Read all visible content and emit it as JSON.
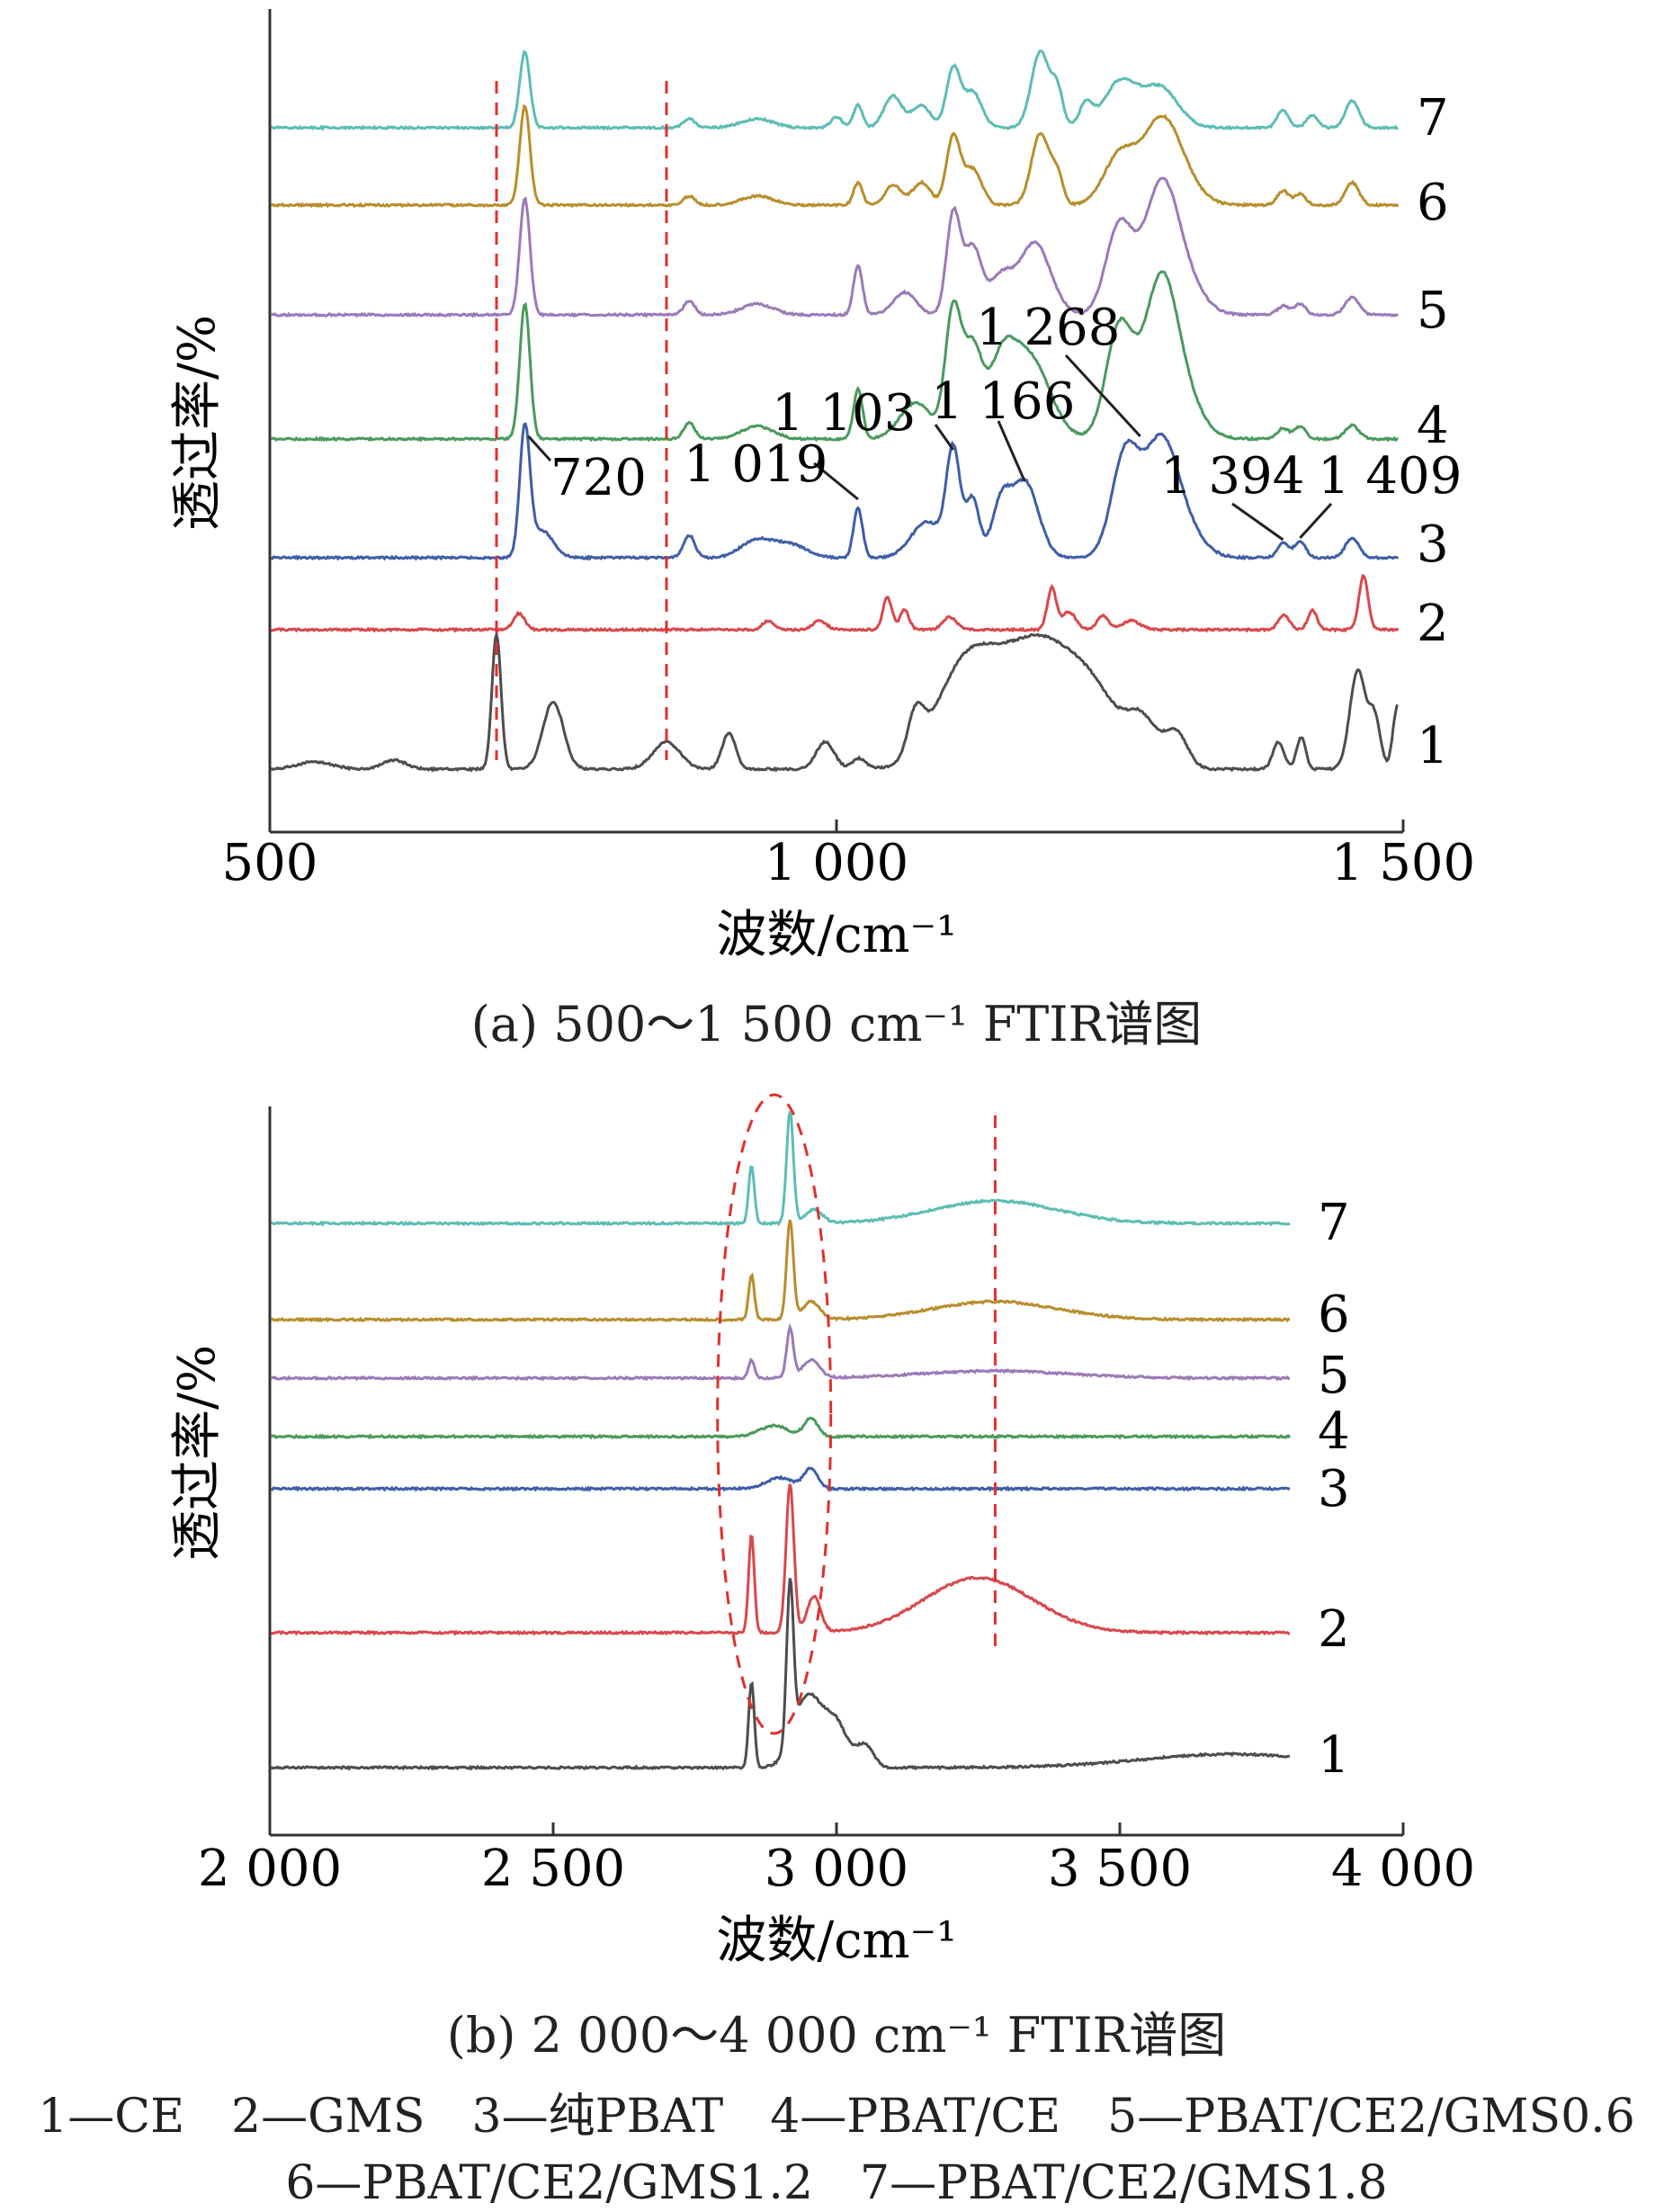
{
  "chart_data": [
    {
      "type": "line",
      "caption": "(a) 500～1 500 cm⁻¹ FTIR谱图",
      "xlabel": "波数/cm⁻¹",
      "ylabel": "透过率/%",
      "xlim": [
        500,
        1500
      ],
      "xticks": [
        500,
        1000,
        1500
      ],
      "xtick_labels": [
        "500",
        "1 000",
        "1 500"
      ],
      "grid": false,
      "ref_lines_x": [
        700,
        850
      ],
      "series_labels": [
        "1",
        "2",
        "3",
        "4",
        "5",
        "6",
        "7"
      ],
      "annotations": [
        {
          "text": "720",
          "x": 725,
          "series": 3
        },
        {
          "text": "1 019",
          "x": 1019,
          "series": 3
        },
        {
          "text": "1 103",
          "x": 1103,
          "series": 3
        },
        {
          "text": "1 166",
          "x": 1166,
          "series": 3
        },
        {
          "text": "1 268",
          "x": 1268,
          "series": 3
        },
        {
          "text": "1 394",
          "x": 1394,
          "series": 3
        },
        {
          "text": "1 409",
          "x": 1409,
          "series": 3
        }
      ]
    },
    {
      "type": "line",
      "caption": "(b) 2 000～4 000 cm⁻¹ FTIR谱图",
      "xlabel": "波数/cm⁻¹",
      "ylabel": "透过率/%",
      "xlim": [
        2000,
        4000
      ],
      "xticks": [
        2000,
        2500,
        3000,
        3500,
        4000
      ],
      "xtick_labels": [
        "2 000",
        "2 500",
        "3 000",
        "3 500",
        "4 000"
      ],
      "grid": false,
      "ref_lines_x": [
        3280
      ],
      "highlight_ellipse_x": [
        2790,
        2990
      ],
      "series_labels": [
        "1",
        "2",
        "3",
        "4",
        "5",
        "6",
        "7"
      ]
    }
  ],
  "series_colors": [
    "#4d4d4d",
    "#d9474b",
    "#3e5ea8",
    "#4a9a5c",
    "#9b7ab8",
    "#b88e2c",
    "#5cbdb4"
  ],
  "reference_color": "#e0302c",
  "legend": {
    "line1": "1—CE　2—GMS　3—纯PBAT　4—PBAT/CE　5—PBAT/CE2/GMS0.6",
    "line2": "6—PBAT/CE2/GMS1.2　7—PBAT/CE2/GMS1.8"
  }
}
